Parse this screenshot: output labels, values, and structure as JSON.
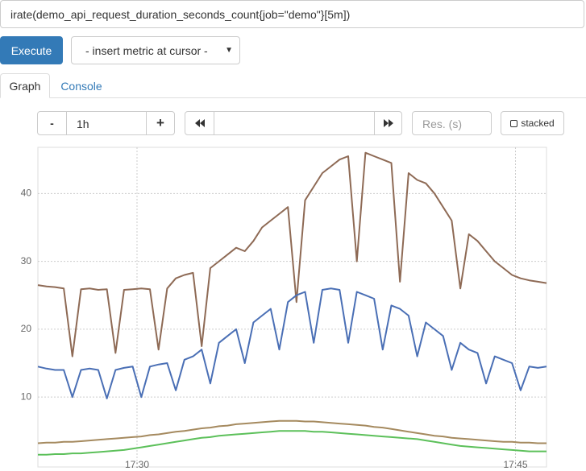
{
  "query": "irate(demo_api_request_duration_seconds_count{job=\"demo\"}[5m])",
  "execute": "Execute",
  "insert_metric": "- insert metric at cursor -",
  "tabs": [
    "Graph",
    "Console"
  ],
  "controls": {
    "minus": "-",
    "range": "1h",
    "plus": "+",
    "resolution": "Res. (s)",
    "stacked": "stacked"
  },
  "chart_data": {
    "type": "line",
    "ylim": [
      -0.3,
      46.8
    ],
    "yticks": [
      10,
      20,
      30,
      40
    ],
    "xlim": [
      0,
      59
    ],
    "xticks": [
      {
        "value": 11.5,
        "label": "17:30"
      },
      {
        "value": 55.4,
        "label": "17:45"
      }
    ],
    "grid": true,
    "series": [
      {
        "color": "#8e6a55",
        "values": [
          26.5,
          26.3,
          26.2,
          26,
          16,
          25.9,
          26,
          25.8,
          25.9,
          16.5,
          25.8,
          25.9,
          26,
          25.9,
          17,
          26,
          27.5,
          28,
          28.3,
          17.5,
          29,
          30,
          31,
          32,
          31.5,
          33,
          35,
          36,
          37,
          38,
          24,
          39,
          41,
          43,
          44,
          45,
          45.5,
          30,
          46,
          45.5,
          45,
          44.5,
          27,
          43,
          42,
          41.5,
          40,
          38,
          36,
          26,
          34,
          33,
          31.5,
          30,
          29,
          28,
          27.5,
          27.2,
          27,
          26.8
        ]
      },
      {
        "color": "#4a6fb5",
        "values": [
          14.5,
          14.2,
          14,
          14,
          10,
          14,
          14.2,
          14,
          9.8,
          14,
          14.3,
          14.5,
          10,
          14.5,
          14.8,
          15,
          11,
          15.5,
          16,
          17,
          12,
          18,
          19,
          20,
          15,
          21,
          22,
          23,
          17,
          24,
          25,
          25.5,
          18,
          25.8,
          26,
          25.8,
          18,
          25.5,
          25,
          24.5,
          17,
          23.5,
          23,
          22,
          16,
          21,
          20,
          19,
          14,
          18,
          17,
          16.5,
          12,
          16,
          15.5,
          15,
          11,
          14.5,
          14.3,
          14.5
        ]
      },
      {
        "color": "#a58a5f",
        "values": [
          3.2,
          3.3,
          3.3,
          3.4,
          3.4,
          3.5,
          3.6,
          3.7,
          3.8,
          3.9,
          4,
          4.1,
          4.2,
          4.4,
          4.5,
          4.7,
          4.9,
          5,
          5.2,
          5.4,
          5.5,
          5.7,
          5.8,
          6,
          6.1,
          6.2,
          6.3,
          6.4,
          6.5,
          6.5,
          6.5,
          6.4,
          6.4,
          6.3,
          6.2,
          6.1,
          6,
          5.9,
          5.8,
          5.6,
          5.5,
          5.3,
          5.1,
          4.9,
          4.7,
          4.5,
          4.3,
          4.2,
          4,
          3.9,
          3.8,
          3.7,
          3.6,
          3.5,
          3.4,
          3.4,
          3.3,
          3.3,
          3.2,
          3.2
        ]
      },
      {
        "color": "#5cc05a",
        "values": [
          1.5,
          1.5,
          1.6,
          1.6,
          1.7,
          1.7,
          1.8,
          1.9,
          2,
          2.1,
          2.2,
          2.4,
          2.6,
          2.8,
          3,
          3.2,
          3.4,
          3.6,
          3.8,
          4,
          4.1,
          4.3,
          4.4,
          4.5,
          4.6,
          4.7,
          4.8,
          4.9,
          5,
          5,
          5,
          5,
          4.9,
          4.9,
          4.8,
          4.7,
          4.6,
          4.5,
          4.4,
          4.3,
          4.2,
          4.1,
          4,
          3.9,
          3.8,
          3.6,
          3.4,
          3.2,
          3,
          2.8,
          2.7,
          2.6,
          2.5,
          2.4,
          2.3,
          2.2,
          2.1,
          2,
          2,
          2
        ]
      }
    ]
  }
}
